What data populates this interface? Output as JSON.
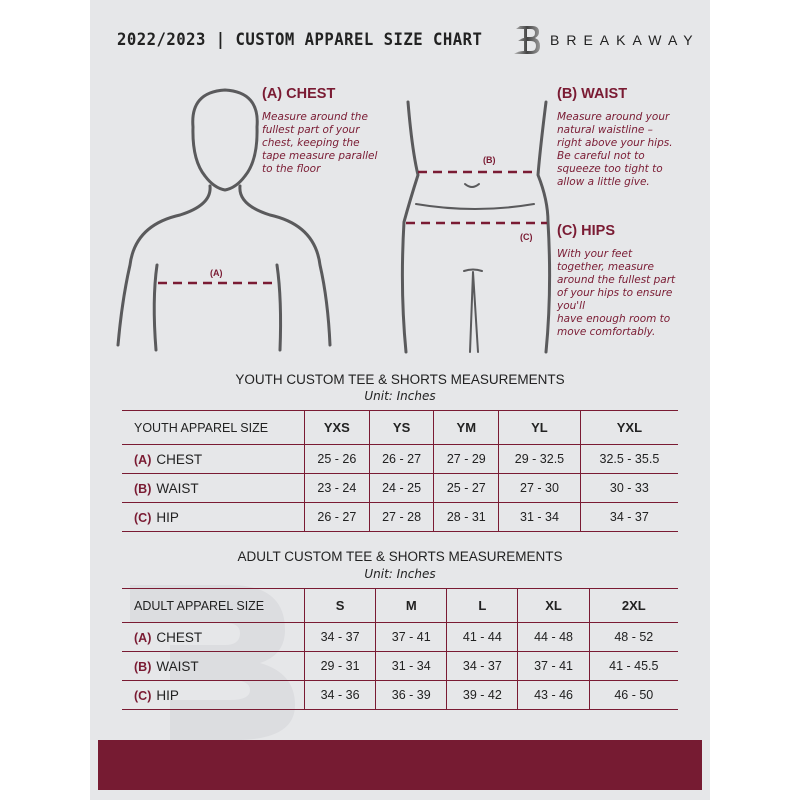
{
  "header": {
    "title": "2022/2023  |  CUSTOM APPAREL SIZE CHART",
    "brand": "BREAKAWAY",
    "logo_letter": "B"
  },
  "colors": {
    "accent": "#7a1b33",
    "background": "#e6e7e9",
    "figure": "#5a5a5c"
  },
  "measure": {
    "chest": {
      "heading": "(A) CHEST",
      "marker": "(A)",
      "text": "Measure around the\nfullest part of your\nchest, keeping the\ntape measure parallel\nto the floor"
    },
    "waist": {
      "heading": "(B) WAIST",
      "marker": "(B)",
      "text": "Measure around your\nnatural waistline –\nright above your hips.\nBe careful not to\nsqueeze too tight to\nallow a little give."
    },
    "hips": {
      "heading": "(C) HIPS",
      "marker": "(C)",
      "text": "With your feet\ntogether, measure\naround the fullest part\nof your hips to ensure\nyou'll\nhave enough room to\nmove comfortably."
    }
  },
  "youth": {
    "title": "YOUTH CUSTOM TEE & SHORTS MEASUREMENTS",
    "unit": "Unit: Inches",
    "header": [
      "YOUTH APPAREL SIZE",
      "YXS",
      "YS",
      "YM",
      "YL",
      "YXL"
    ],
    "rows": [
      {
        "code": "(A)",
        "label": "CHEST",
        "values": [
          "25 - 26",
          "26 - 27",
          "27 - 29",
          "29 - 32.5",
          "32.5 - 35.5"
        ]
      },
      {
        "code": "(B)",
        "label": "WAIST",
        "values": [
          "23 - 24",
          "24 - 25",
          "25 - 27",
          "27 - 30",
          "30 - 33"
        ]
      },
      {
        "code": "(C)",
        "label": "HIP",
        "values": [
          "26 - 27",
          "27 - 28",
          "28 - 31",
          "31 - 34",
          "34 - 37"
        ]
      }
    ]
  },
  "adult": {
    "title": "ADULT CUSTOM TEE & SHORTS MEASUREMENTS",
    "unit": "Unit: Inches",
    "header": [
      "ADULT APPAREL SIZE",
      "S",
      "M",
      "L",
      "XL",
      "2XL"
    ],
    "rows": [
      {
        "code": "(A)",
        "label": "CHEST",
        "values": [
          "34 - 37",
          "37 - 41",
          "41 - 44",
          "44 - 48",
          "48 - 52"
        ]
      },
      {
        "code": "(B)",
        "label": "WAIST",
        "values": [
          "29 - 31",
          "31 - 34",
          "34 - 37",
          "37 - 41",
          "41 - 45.5"
        ]
      },
      {
        "code": "(C)",
        "label": "HIP",
        "values": [
          "34 - 36",
          "36 - 39",
          "39 - 42",
          "43 - 46",
          "46 - 50"
        ]
      }
    ]
  }
}
